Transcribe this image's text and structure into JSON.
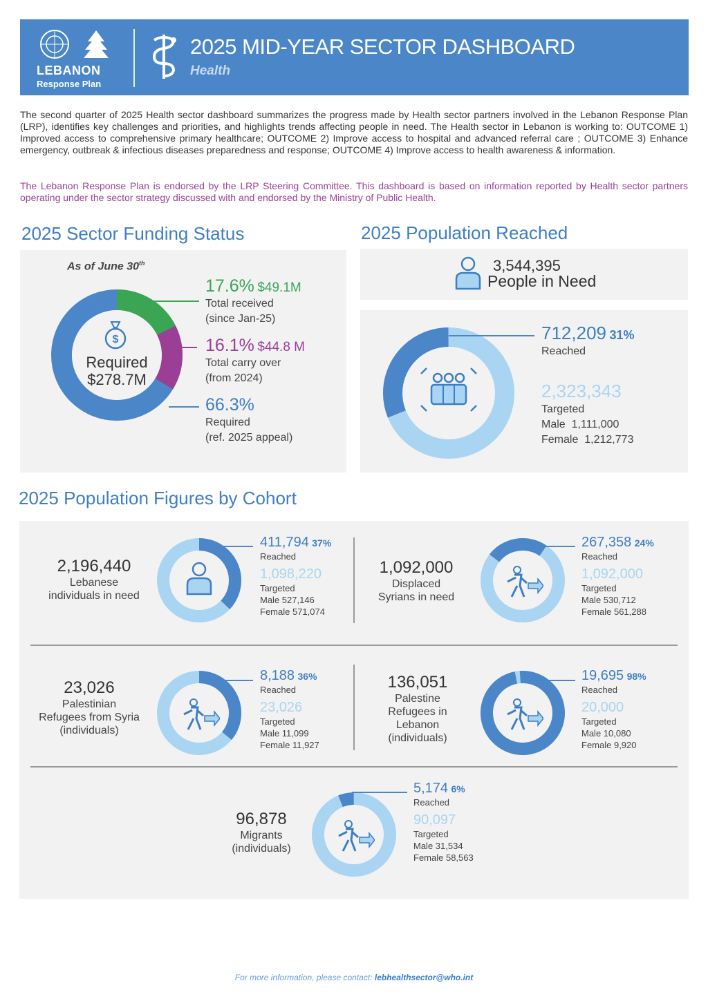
{
  "header": {
    "logo_word": "LEBANON",
    "logo_sub": "Response Plan",
    "title": "2025 MID-YEAR SECTOR DASHBOARD",
    "subtitle": "Health"
  },
  "intro": "The second quarter of 2025 Health sector dashboard summarizes the progress made by Health sector partners involved in the Lebanon Response Plan (LRP), identifies key challenges and priorities, and highlights trends affecting people in need. The Health sector in Lebanon is working to: OUTCOME 1) Improved access to comprehensive primary healthcare; OUTCOME 2) Improve access to hospital and advanced referral care ; OUTCOME 3) Enhance emergency, outbreak & infectious diseases preparedness and response; OUTCOME 4) Improve access to health awareness & information.",
  "note": "The Lebanon Response Plan is endorsed by the LRP Steering Committee. This dashboard is based on information reported by Health sector partners operating under the sector strategy discussed with and endorsed by the Ministry of Public Health.",
  "funding": {
    "title": "2025 Sector Funding Status",
    "as_of": "As of June 30",
    "as_of_sup": "th",
    "center_line1": "Required",
    "center_line2": "$278.7M",
    "received_pct": "17.6%",
    "received_amt": "$49.1M",
    "received_l1": "Total received",
    "received_l2": "(since Jan-25)",
    "carry_pct": "16.1%",
    "carry_amt": "$44.8 M",
    "carry_l1": "Total carry over",
    "carry_l2": "(from 2024)",
    "req_pct": "66.3%",
    "req_l1": "Required",
    "req_l2": "(ref. 2025 appeal)"
  },
  "reached": {
    "title": "2025 Population Reached",
    "pin_value": "3,544,395",
    "pin_label": "People in Need",
    "reached_value": "712,209",
    "reached_pct": "31%",
    "reached_label": "Reached",
    "targeted_value": "2,323,343",
    "targeted_label": "Targeted",
    "male_label": "Male",
    "male_value": "1,111,000",
    "female_label": "Female",
    "female_value": "1,212,773"
  },
  "cohorts_title": "2025 Population Figures by Cohort",
  "cohorts": [
    {
      "value": "2,196,440",
      "l1": "Lebanese",
      "l2": "individuals in need",
      "l3": "",
      "reached": "411,794",
      "pct": "37%",
      "reached_label": "Reached",
      "targeted": "1,098,220",
      "targeted_label": "Targeted",
      "male": "Male 527,146",
      "female": "Female 571,074"
    },
    {
      "value": "1,092,000",
      "l1": "Displaced",
      "l2": "Syrians in need",
      "l3": "",
      "reached": "267,358",
      "pct": "24%",
      "reached_label": "Reached",
      "targeted": "1,092,000",
      "targeted_label": "Targeted",
      "male": "Male 530,712",
      "female": "Female 561,288"
    },
    {
      "value": "23,026",
      "l1": "Palestinian",
      "l2": "Refugees from Syria",
      "l3": "(individuals)",
      "reached": "8,188",
      "pct": "36%",
      "reached_label": "Reached",
      "targeted": "23,026",
      "targeted_label": "Targeted",
      "male": "Male 11,099",
      "female": "Female 11,927"
    },
    {
      "value": "136,051",
      "l1": "Palestine",
      "l2": "Refugees in",
      "l3": "Lebanon",
      "l4": "(individuals)",
      "reached": "19,695",
      "pct": "98%",
      "reached_label": "Reached",
      "targeted": "20,000",
      "targeted_label": "Targeted",
      "male": "Male 10,080",
      "female": "Female 9,920"
    },
    {
      "value": "96,878",
      "l1": "Migrants",
      "l2": "(individuals)",
      "l3": "",
      "reached": "5,174",
      "pct": "6%",
      "reached_label": "Reached",
      "targeted": "90,097",
      "targeted_label": "Targeted",
      "male": "Male 31,534",
      "female": "Female 58,563"
    }
  ],
  "footer": {
    "text": "For more information, please contact:",
    "email": "lebhealthsector@who.int"
  },
  "colors": {
    "header": "#4a86c8",
    "dark_blue": "#3d7ec4",
    "light_blue": "#a9d4f2",
    "green": "#3aa654",
    "purple": "#9b3f96"
  }
}
